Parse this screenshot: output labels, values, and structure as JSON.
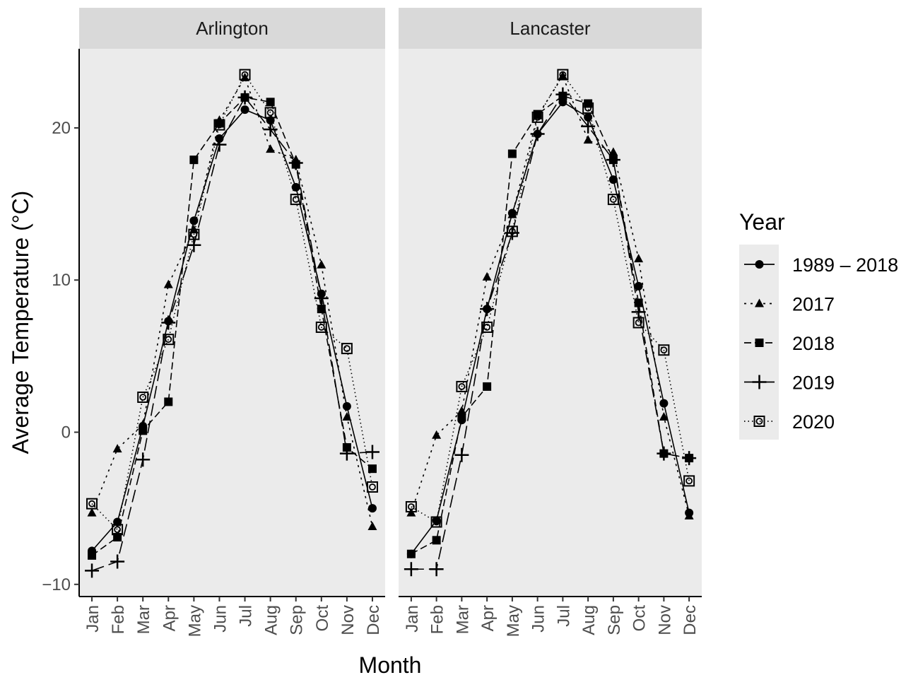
{
  "chart_data": {
    "type": "line",
    "xlabel": "Month",
    "ylabel": "Average Temperature (°C)",
    "ylim": [
      -10.8,
      25.2
    ],
    "yticks": [
      -10,
      0,
      10,
      20
    ],
    "ytick_labels": [
      "−10",
      "0",
      "10",
      "20"
    ],
    "grid": false,
    "legend": {
      "title": "Year",
      "position": "right",
      "items": [
        {
          "label": "1989 – 2018",
          "dash": "solid",
          "shape": "circle"
        },
        {
          "label": "2017",
          "dash": "dotted",
          "shape": "triangle"
        },
        {
          "label": "2018",
          "dash": "dashed",
          "shape": "square"
        },
        {
          "label": "2019",
          "dash": "longdash",
          "shape": "plus"
        },
        {
          "label": "2020",
          "dash": "fine-dotted",
          "shape": "boxed-circle"
        }
      ]
    },
    "categories": [
      "Jan",
      "Feb",
      "Mar",
      "Apr",
      "May",
      "Jun",
      "Jul",
      "Aug",
      "Sep",
      "Oct",
      "Nov",
      "Dec"
    ],
    "panels": [
      {
        "title": "Arlington",
        "series": [
          {
            "name": "1989 – 2018",
            "values": [
              -7.8,
              -5.9,
              0.4,
              7.3,
              13.9,
              19.3,
              21.2,
              20.5,
              16.1,
              9.1,
              1.7,
              -5.0
            ]
          },
          {
            "name": "2017",
            "values": [
              -5.3,
              -1.1,
              0.5,
              9.7,
              13.3,
              20.5,
              23.3,
              18.6,
              17.9,
              11.0,
              1.0,
              -6.2
            ]
          },
          {
            "name": "2018",
            "values": [
              -8.1,
              -6.9,
              0.1,
              2.0,
              17.9,
              20.3,
              22.0,
              21.7,
              17.6,
              8.1,
              -1.0,
              -2.4
            ]
          },
          {
            "name": "2019",
            "values": [
              -9.1,
              -8.5,
              -1.8,
              7.2,
              12.3,
              18.9,
              22.0,
              19.9,
              17.7,
              8.8,
              -1.4,
              -1.3
            ]
          },
          {
            "name": "2020",
            "values": [
              -4.7,
              -6.4,
              2.3,
              6.1,
              13.0,
              20.2,
              23.5,
              21.0,
              15.3,
              6.9,
              5.5,
              -3.6
            ]
          }
        ]
      },
      {
        "title": "Lancaster",
        "series": [
          {
            "name": "1989 – 2018",
            "values": [
              -8.0,
              -5.8,
              0.8,
              8.1,
              14.4,
              19.6,
              21.7,
              20.7,
              16.6,
              9.6,
              1.9,
              -5.3
            ]
          },
          {
            "name": "2017",
            "values": [
              -5.3,
              -0.2,
              1.4,
              10.2,
              14.3,
              20.8,
              23.4,
              19.2,
              18.4,
              11.4,
              1.0,
              -5.5
            ]
          },
          {
            "name": "2018",
            "values": [
              -8.0,
              -7.1,
              1.0,
              3.0,
              18.3,
              20.9,
              22.1,
              21.6,
              17.9,
              8.5,
              -1.4,
              -1.7
            ]
          },
          {
            "name": "2019",
            "values": [
              -9.0,
              -9.0,
              -1.5,
              8.1,
              13.1,
              19.6,
              22.2,
              20.1,
              17.9,
              7.9,
              -1.4,
              -1.7
            ]
          },
          {
            "name": "2020",
            "values": [
              -4.9,
              -5.9,
              3.0,
              6.9,
              13.2,
              20.7,
              23.5,
              21.3,
              15.3,
              7.2,
              5.4,
              -3.2
            ]
          }
        ]
      }
    ]
  }
}
